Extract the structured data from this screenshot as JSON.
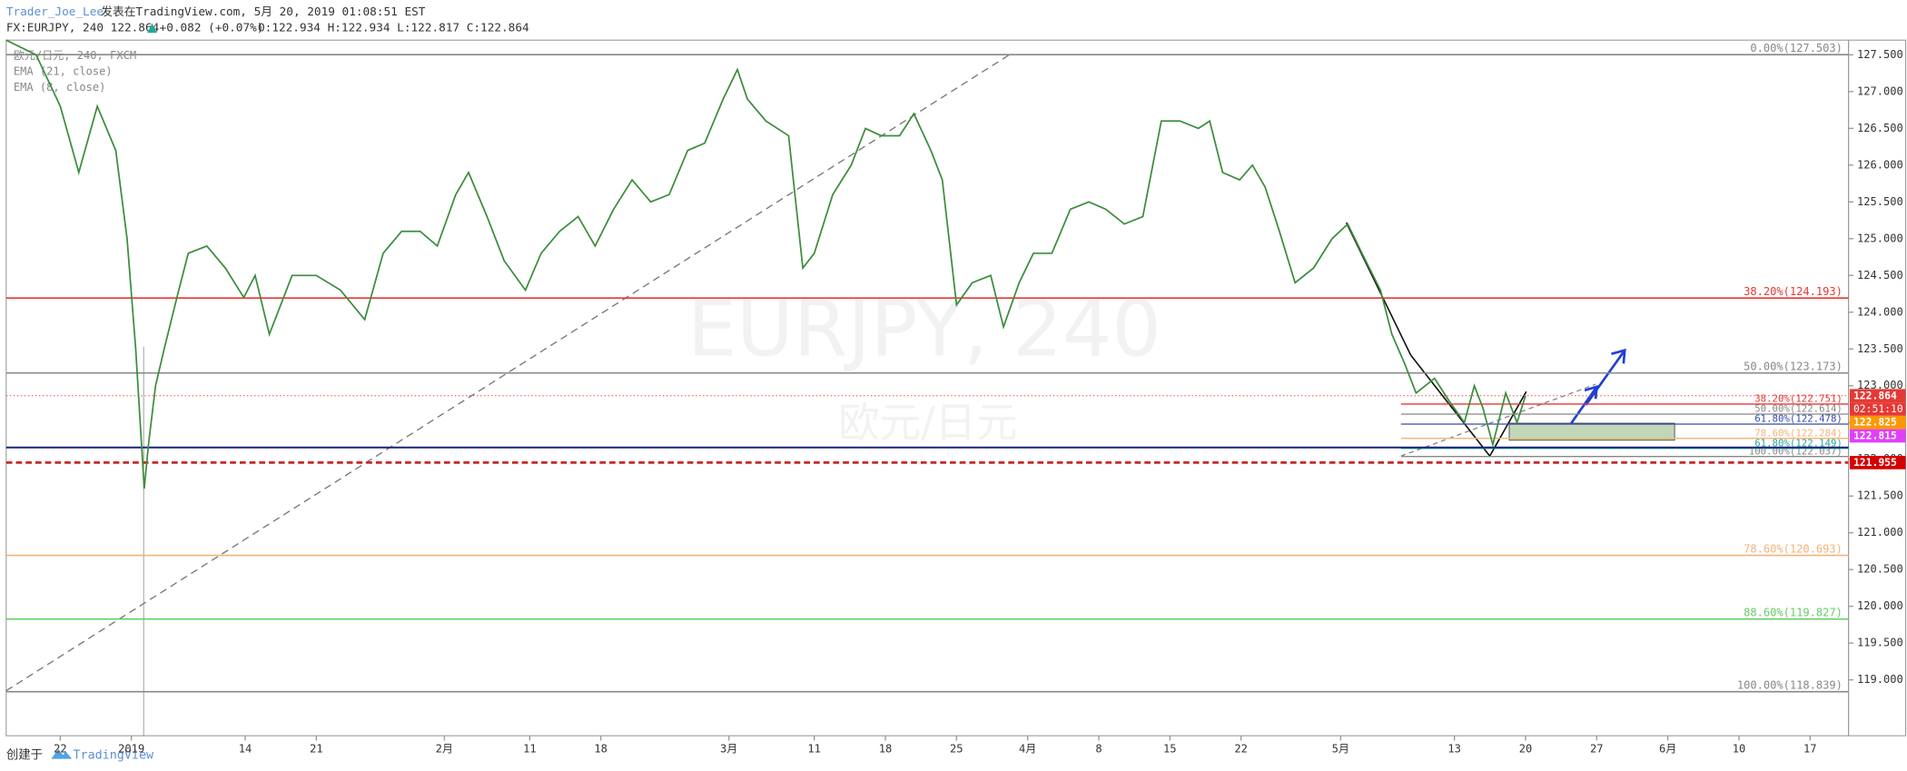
{
  "header": {
    "author": "Trader_Joe_Lee",
    "published": "发表在TradingView.com, 5月 20, 2019 01:08:51 EST",
    "symbol": "FX:EURJPY, 240 122.864",
    "change": "+0.082 (+0.07%)",
    "ohlc": "O:122.934 H:122.934 L:122.817 C:122.864"
  },
  "footer": {
    "created": "创建于",
    "brand": "TradingView"
  },
  "chart_data": {
    "type": "line",
    "legend": [
      "EMA (21, close)",
      "EMA (8, close)"
    ],
    "watermark": [
      "EURJPY, 240",
      "欧元/日元"
    ],
    "x": [
      -8.8,
      -6.7,
      -5.0,
      -3.7,
      -2.4,
      -1.1,
      -0.3,
      0.3,
      0.9,
      1.2,
      1.7,
      2.3,
      3.2,
      4.0,
      5.3,
      6.6,
      7.9,
      8.7,
      9.7,
      11.3,
      13.0,
      14.7,
      16.4,
      17.7,
      19.0,
      20.3,
      21.5,
      22.8,
      23.7,
      25.0,
      26.2,
      27.7,
      28.8,
      30.1,
      31.4,
      32.6,
      33.9,
      35.2,
      36.5,
      37.8,
      39.1,
      40.3,
      41.6,
      42.6,
      43.3,
      44.6,
      46.2,
      47.2,
      48.0,
      49.3,
      50.6,
      51.6,
      52.7,
      54.0,
      55.0,
      56.2,
      57.0,
      58.0,
      59.1,
      60.4,
      61.3,
      62.4,
      63.4,
      64.7,
      66.0,
      67.3,
      68.5,
      69.8,
      71.1,
      72.4,
      73.7,
      75.0,
      75.8,
      76.7,
      77.9,
      78.8,
      79.7,
      80.7,
      81.8,
      83.1,
      84.4,
      85.5,
      86.5,
      87.8,
      88.6,
      89.5,
      90.3,
      91.6,
      92.6,
      93.7,
      94.4,
      95.0,
      95.7,
      96.6,
      97.4,
      98.0
    ],
    "series": [
      {
        "name": "欧元/日元, 240, FXCM",
        "color": "#3c8d3c",
        "values": [
          127.7,
          127.5,
          126.8,
          125.9,
          126.8,
          126.2,
          125.0,
          123.5,
          121.6,
          122.2,
          123.0,
          123.5,
          124.2,
          124.8,
          124.9,
          124.6,
          124.2,
          124.5,
          123.7,
          124.5,
          124.5,
          124.3,
          123.9,
          124.8,
          125.1,
          125.1,
          124.9,
          125.6,
          125.9,
          125.3,
          124.7,
          124.3,
          124.8,
          125.1,
          125.3,
          124.9,
          125.4,
          125.8,
          125.5,
          125.6,
          126.2,
          126.3,
          126.9,
          127.3,
          126.9,
          126.6,
          126.4,
          124.6,
          124.8,
          125.6,
          126.0,
          126.5,
          126.4,
          126.4,
          126.7,
          126.2,
          125.8,
          124.1,
          124.4,
          124.5,
          123.8,
          124.4,
          124.8,
          124.8,
          125.4,
          125.5,
          125.4,
          125.2,
          125.3,
          126.6,
          126.6,
          126.5,
          126.6,
          125.9,
          125.8,
          126.0,
          125.7,
          125.1,
          124.4,
          124.6,
          125.0,
          125.2,
          124.8,
          124.3,
          123.7,
          123.3,
          122.9,
          123.1,
          122.8,
          122.5,
          123.0,
          122.7,
          122.2,
          122.9,
          122.5,
          122.864
        ]
      }
    ],
    "xlim": [
      -8.8,
      120.7
    ],
    "xticks": [
      {
        "value": -5,
        "label": "22"
      },
      {
        "value": 0,
        "label": "2019"
      },
      {
        "value": 8,
        "label": "14"
      },
      {
        "value": 13,
        "label": "21"
      },
      {
        "value": 22,
        "label": "2月"
      },
      {
        "value": 28,
        "label": "11"
      },
      {
        "value": 33,
        "label": "18"
      },
      {
        "value": 42,
        "label": "3月"
      },
      {
        "value": 48,
        "label": "11"
      },
      {
        "value": 53,
        "label": "18"
      },
      {
        "value": 58,
        "label": "25"
      },
      {
        "value": 63,
        "label": "4月"
      },
      {
        "value": 68,
        "label": "8"
      },
      {
        "value": 73,
        "label": "15"
      },
      {
        "value": 78,
        "label": "22"
      },
      {
        "value": 85,
        "label": "5月"
      },
      {
        "value": 93,
        "label": "13"
      },
      {
        "value": 98,
        "label": "20"
      },
      {
        "value": 103,
        "label": "27"
      },
      {
        "value": 108,
        "label": "6月"
      },
      {
        "value": 113,
        "label": "10"
      },
      {
        "value": 118,
        "label": "17"
      }
    ],
    "ylim": [
      118.24,
      127.7
    ],
    "yticks": [
      {
        "value": 119,
        "label": "119.000"
      },
      {
        "value": 119.5,
        "label": "119.500"
      },
      {
        "value": 120,
        "label": "120.000"
      },
      {
        "value": 120.5,
        "label": "120.500"
      },
      {
        "value": 121,
        "label": "121.000"
      },
      {
        "value": 121.5,
        "label": "121.500"
      },
      {
        "value": 122,
        "label": "122.000"
      },
      {
        "value": 122.5,
        "label": "122.500"
      },
      {
        "value": 123,
        "label": "123.000"
      },
      {
        "value": 123.5,
        "label": "123.500"
      },
      {
        "value": 124,
        "label": "124.000"
      },
      {
        "value": 124.5,
        "label": "124.500"
      },
      {
        "value": 125,
        "label": "125.000"
      },
      {
        "value": 125.5,
        "label": "125.500"
      },
      {
        "value": 126,
        "label": "126.000"
      },
      {
        "value": 126.5,
        "label": "126.500"
      },
      {
        "value": 127,
        "label": "127.000"
      },
      {
        "value": 127.5,
        "label": "127.500"
      }
    ],
    "levels": [
      {
        "label": "0.00%(127.503)",
        "value": 127.503,
        "color": "#888888"
      },
      {
        "label": "38.20%(124.193)",
        "value": 124.193,
        "color": "#e53935"
      },
      {
        "label": "50.00%(123.173)",
        "value": 123.173,
        "color": "#888888"
      },
      {
        "label": "78.60%(120.693)",
        "value": 120.693,
        "color": "#f5b27a"
      },
      {
        "label": "88.60%(119.827)",
        "value": 119.827,
        "color": "#66cc66"
      },
      {
        "label": "100.00%(118.839)",
        "value": 118.839,
        "color": "#888888"
      }
    ],
    "small_levels": [
      {
        "label": "38.20%(122.751)",
        "value": 122.751,
        "color": "#e53935"
      },
      {
        "label": "50.00%(122.614)",
        "value": 122.614,
        "color": "#888888"
      },
      {
        "label": "61.80%(122.478)",
        "value": 122.478,
        "color": "#3949ab"
      },
      {
        "label": "78.60%(122.284)",
        "value": 122.284,
        "color": "#f5b27a"
      },
      {
        "label": "61.80%(122.149)",
        "value": 122.149,
        "color": "#26a69a"
      },
      {
        "label": "100.00%(122.037)",
        "value": 122.037,
        "color": "#888888"
      }
    ],
    "lines": [
      {
        "value": 122.864,
        "color": "#e53935",
        "dash": "1,2",
        "width": 0.8
      },
      {
        "value": 122.16,
        "color": "#1a237e",
        "dash": "",
        "width": 1.5
      },
      {
        "value": 121.955,
        "color": "#c62828",
        "dash": "5,3",
        "width": 2
      }
    ],
    "price_badges": [
      {
        "value": 122.864,
        "color": "#e53935",
        "countdown": "02:51:10"
      },
      {
        "value": 122.825,
        "color": "#ff9800"
      },
      {
        "value": 122.815,
        "color": "#e040fb"
      },
      {
        "value": 121.955,
        "color": "#d50000"
      }
    ]
  }
}
